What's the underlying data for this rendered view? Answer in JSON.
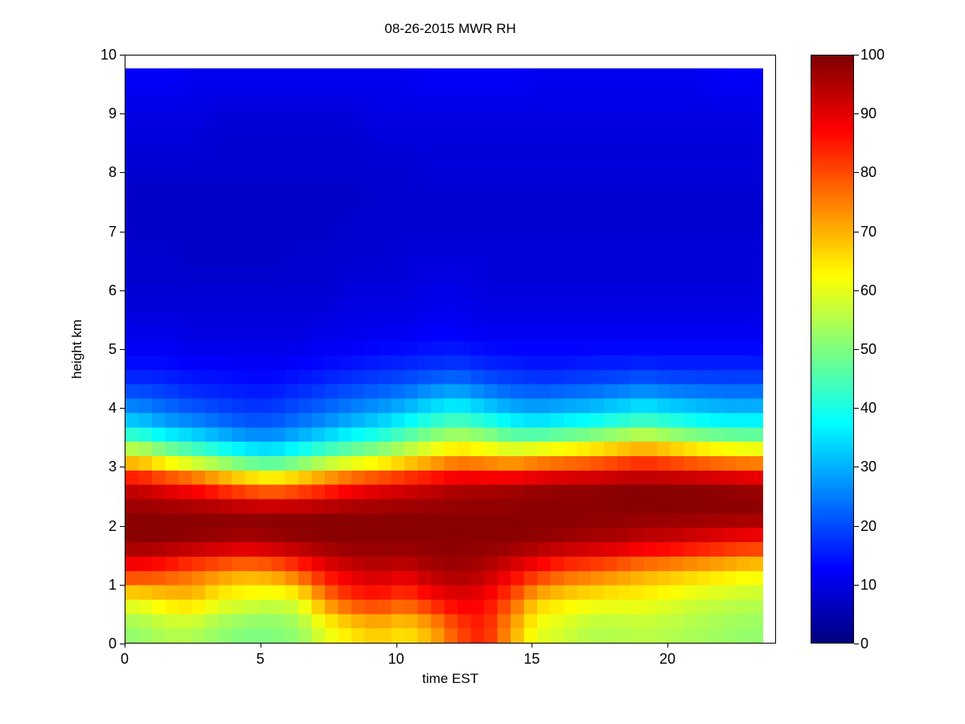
{
  "chart_data": {
    "type": "heatmap",
    "title": "08-26-2015 MWR RH",
    "xlabel": "time EST",
    "ylabel": "height km",
    "xlim": [
      0,
      24
    ],
    "ylim": [
      0,
      10
    ],
    "clim": [
      0,
      100
    ],
    "x_ticks": [
      0,
      5,
      10,
      15,
      20
    ],
    "y_ticks": [
      0,
      1,
      2,
      3,
      4,
      5,
      6,
      7,
      8,
      9,
      10
    ],
    "colorbar_ticks": [
      0,
      10,
      20,
      30,
      40,
      50,
      60,
      70,
      80,
      90,
      100
    ],
    "colormap": "jet",
    "colorbar_position": "right",
    "grid_on": false,
    "data_extent": {
      "x": [
        0,
        23.5
      ],
      "y": [
        0,
        9.75
      ]
    },
    "x_hours": [
      0,
      1,
      2,
      3,
      4,
      5,
      6,
      7,
      8,
      9,
      10,
      11,
      12,
      13,
      14,
      15,
      16,
      17,
      18,
      19,
      20,
      21,
      22,
      23
    ],
    "row_height_km": 0.5,
    "values_rows_bottom_to_top": [
      [
        52,
        55,
        55,
        52,
        50,
        50,
        52,
        60,
        65,
        68,
        65,
        70,
        80,
        85,
        72,
        60,
        58,
        55,
        55,
        56,
        55,
        54,
        53,
        52
      ],
      [
        62,
        66,
        68,
        62,
        60,
        58,
        60,
        74,
        82,
        84,
        80,
        86,
        90,
        88,
        80,
        68,
        65,
        63,
        62,
        62,
        60,
        58,
        57,
        56
      ],
      [
        85,
        82,
        78,
        75,
        72,
        74,
        80,
        88,
        92,
        94,
        92,
        96,
        97,
        95,
        90,
        85,
        80,
        78,
        75,
        72,
        70,
        68,
        66,
        64
      ],
      [
        99,
        99,
        98,
        97,
        96,
        97,
        98,
        99,
        99,
        99,
        99,
        99,
        99,
        99,
        99,
        98,
        97,
        96,
        95,
        93,
        92,
        90,
        88,
        86
      ],
      [
        99,
        99,
        99,
        99,
        99,
        99,
        99,
        99,
        99,
        99,
        99,
        99,
        99,
        99,
        99,
        99,
        99,
        99,
        99,
        99,
        99,
        99,
        99,
        99
      ],
      [
        92,
        88,
        85,
        80,
        75,
        72,
        75,
        80,
        85,
        88,
        90,
        92,
        95,
        95,
        96,
        97,
        98,
        98,
        99,
        99,
        99,
        99,
        98,
        97
      ],
      [
        62,
        55,
        50,
        45,
        40,
        38,
        42,
        48,
        52,
        55,
        60,
        65,
        70,
        68,
        65,
        68,
        70,
        72,
        75,
        78,
        75,
        72,
        70,
        68
      ],
      [
        35,
        30,
        28,
        25,
        22,
        22,
        25,
        28,
        32,
        35,
        40,
        45,
        48,
        45,
        40,
        38,
        40,
        42,
        45,
        48,
        45,
        42,
        40,
        40
      ],
      [
        22,
        20,
        18,
        17,
        16,
        16,
        18,
        20,
        22,
        24,
        26,
        30,
        32,
        28,
        25,
        24,
        25,
        26,
        28,
        30,
        28,
        27,
        26,
        26
      ],
      [
        14,
        14,
        13,
        13,
        12,
        12,
        13,
        14,
        15,
        16,
        17,
        18,
        19,
        17,
        16,
        15,
        15,
        16,
        16,
        17,
        16,
        16,
        16,
        16
      ],
      [
        11,
        11,
        10,
        10,
        10,
        10,
        10,
        11,
        11,
        12,
        12,
        13,
        13,
        12,
        12,
        12,
        12,
        12,
        12,
        12,
        12,
        12,
        12,
        12
      ],
      [
        9,
        9,
        9,
        9,
        9,
        9,
        9,
        9,
        10,
        10,
        10,
        11,
        11,
        10,
        10,
        10,
        10,
        10,
        10,
        10,
        10,
        10,
        10,
        10
      ],
      [
        8,
        8,
        8,
        8,
        8,
        8,
        8,
        8,
        9,
        9,
        9,
        10,
        10,
        9,
        9,
        9,
        9,
        9,
        9,
        9,
        9,
        9,
        9,
        9
      ],
      [
        8,
        8,
        7,
        7,
        7,
        7,
        8,
        8,
        8,
        8,
        9,
        9,
        9,
        9,
        9,
        9,
        9,
        9,
        9,
        9,
        9,
        9,
        9,
        9
      ],
      [
        7,
        7,
        7,
        7,
        7,
        7,
        7,
        7,
        8,
        8,
        8,
        8,
        8,
        8,
        8,
        8,
        8,
        8,
        8,
        8,
        8,
        8,
        8,
        8
      ],
      [
        7,
        7,
        7,
        7,
        7,
        7,
        7,
        7,
        7,
        8,
        8,
        8,
        8,
        8,
        8,
        8,
        8,
        8,
        8,
        8,
        8,
        8,
        8,
        8
      ],
      [
        8,
        8,
        8,
        8,
        8,
        8,
        8,
        8,
        8,
        8,
        8,
        9,
        9,
        9,
        9,
        9,
        9,
        9,
        9,
        9,
        9,
        9,
        9,
        9
      ],
      [
        9,
        9,
        9,
        8,
        8,
        8,
        8,
        8,
        8,
        9,
        9,
        9,
        9,
        9,
        9,
        9,
        9,
        9,
        9,
        9,
        9,
        9,
        9,
        9
      ],
      [
        10,
        10,
        10,
        9,
        9,
        9,
        9,
        9,
        9,
        10,
        10,
        10,
        10,
        10,
        10,
        10,
        10,
        10,
        10,
        10,
        10,
        10,
        10,
        10
      ],
      [
        12,
        12,
        11,
        11,
        11,
        11,
        11,
        11,
        11,
        11,
        11,
        12,
        12,
        12,
        12,
        11,
        11,
        11,
        11,
        11,
        11,
        11,
        12,
        12
      ]
    ]
  },
  "colors": {
    "background": "#ffffff",
    "axis": "#000000",
    "colormap_low": "#00008f",
    "colormap_high": "#7f0000"
  }
}
